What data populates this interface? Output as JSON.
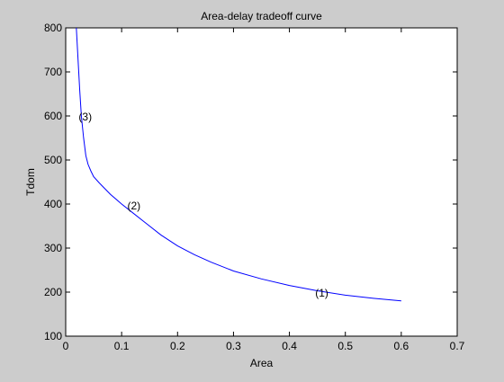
{
  "chart_data": {
    "type": "line",
    "title": "Area-delay tradeoff curve",
    "xlabel": "Area",
    "ylabel": "Tdom",
    "xlim": [
      0,
      0.7
    ],
    "ylim": [
      100,
      800
    ],
    "xticks": [
      0,
      0.1,
      0.2,
      0.3,
      0.4,
      0.5,
      0.6,
      0.7
    ],
    "yticks": [
      100,
      200,
      300,
      400,
      500,
      600,
      700,
      800
    ],
    "xtick_labels": [
      "0",
      "0.1",
      "0.2",
      "0.3",
      "0.4",
      "0.5",
      "0.6",
      "0.7"
    ],
    "ytick_labels": [
      "100",
      "200",
      "300",
      "400",
      "500",
      "600",
      "700",
      "800"
    ],
    "grid": false,
    "line_color": "#0000ff",
    "series": [
      {
        "x": [
          0.019,
          0.022,
          0.025,
          0.028,
          0.032,
          0.036,
          0.04,
          0.045,
          0.05,
          0.06,
          0.07,
          0.08,
          0.1,
          0.12,
          0.14,
          0.17,
          0.2,
          0.23,
          0.26,
          0.3,
          0.35,
          0.4,
          0.45,
          0.5,
          0.55,
          0.6
        ],
        "y": [
          800,
          730,
          660,
          600,
          550,
          510,
          490,
          475,
          462,
          448,
          435,
          422,
          400,
          380,
          360,
          330,
          305,
          285,
          268,
          248,
          230,
          215,
          203,
          193,
          186,
          180
        ]
      }
    ],
    "annotations": [
      {
        "text": "(3)",
        "x": 0.035,
        "y": 598
      },
      {
        "text": "(2)",
        "x": 0.122,
        "y": 396
      },
      {
        "text": "(1)",
        "x": 0.458,
        "y": 198
      }
    ]
  }
}
